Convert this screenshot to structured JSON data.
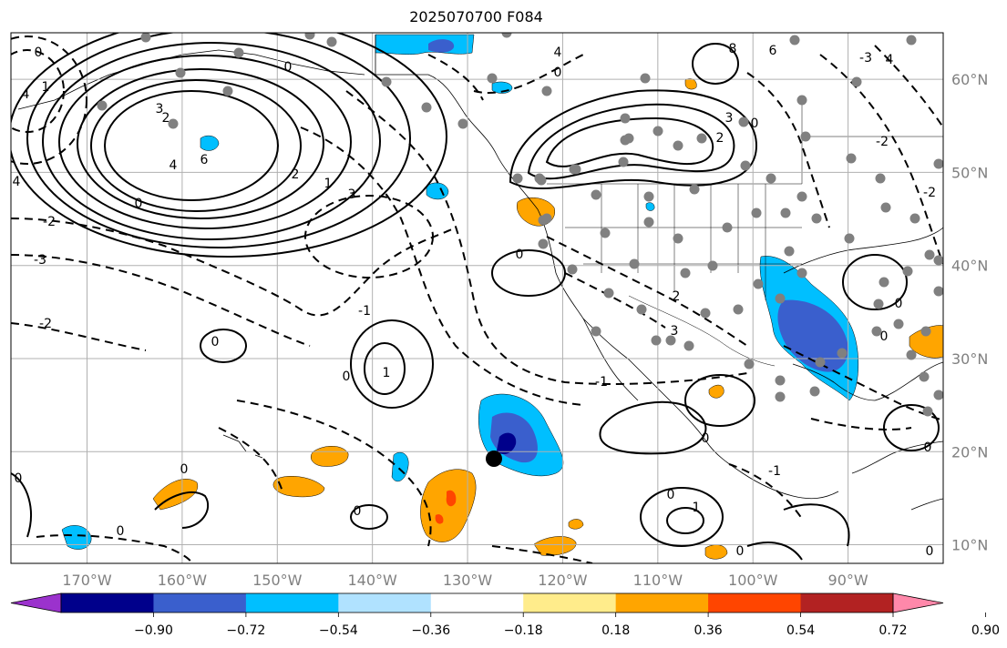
{
  "title": "2025070700 F084",
  "map": {
    "lat_labels": [
      "60°N",
      "50°N",
      "40°N",
      "30°N",
      "20°N",
      "10°N"
    ],
    "lon_labels": [
      "170°W",
      "160°W",
      "150°W",
      "140°W",
      "130°W",
      "120°W",
      "110°W",
      "100°W",
      "90°W"
    ],
    "lat_values": [
      60,
      50,
      40,
      30,
      20,
      10
    ],
    "lon_values": [
      -170,
      -160,
      -150,
      -140,
      -130,
      -120,
      -110,
      -100,
      -90
    ],
    "extent": {
      "lon_min": -178,
      "lon_max": -80,
      "lat_min": 8,
      "lat_max": 65
    },
    "gridlines": true,
    "colors": {
      "grid": "#b0b0b0",
      "coast": "#000000",
      "station": "#808080",
      "cyclone_marker": "#000000"
    },
    "contour_labels": [
      "0",
      "1",
      "2",
      "3",
      "4",
      "6",
      "8",
      "-1",
      "-2",
      "-3"
    ]
  },
  "colorbar": {
    "tick_labels": [
      "−0.90",
      "−0.72",
      "−0.54",
      "−0.36",
      "−0.18",
      "0.18",
      "0.36",
      "0.54",
      "0.72",
      "0.90"
    ],
    "colors": [
      "#9b32cd",
      "#00008b",
      "#3a5fcd",
      "#00bfff",
      "#b0e2ff",
      "#ffffff",
      "#ffec8b",
      "#ffa500",
      "#ff4500",
      "#b22222",
      "#ff88aa"
    ],
    "extend": "both"
  }
}
